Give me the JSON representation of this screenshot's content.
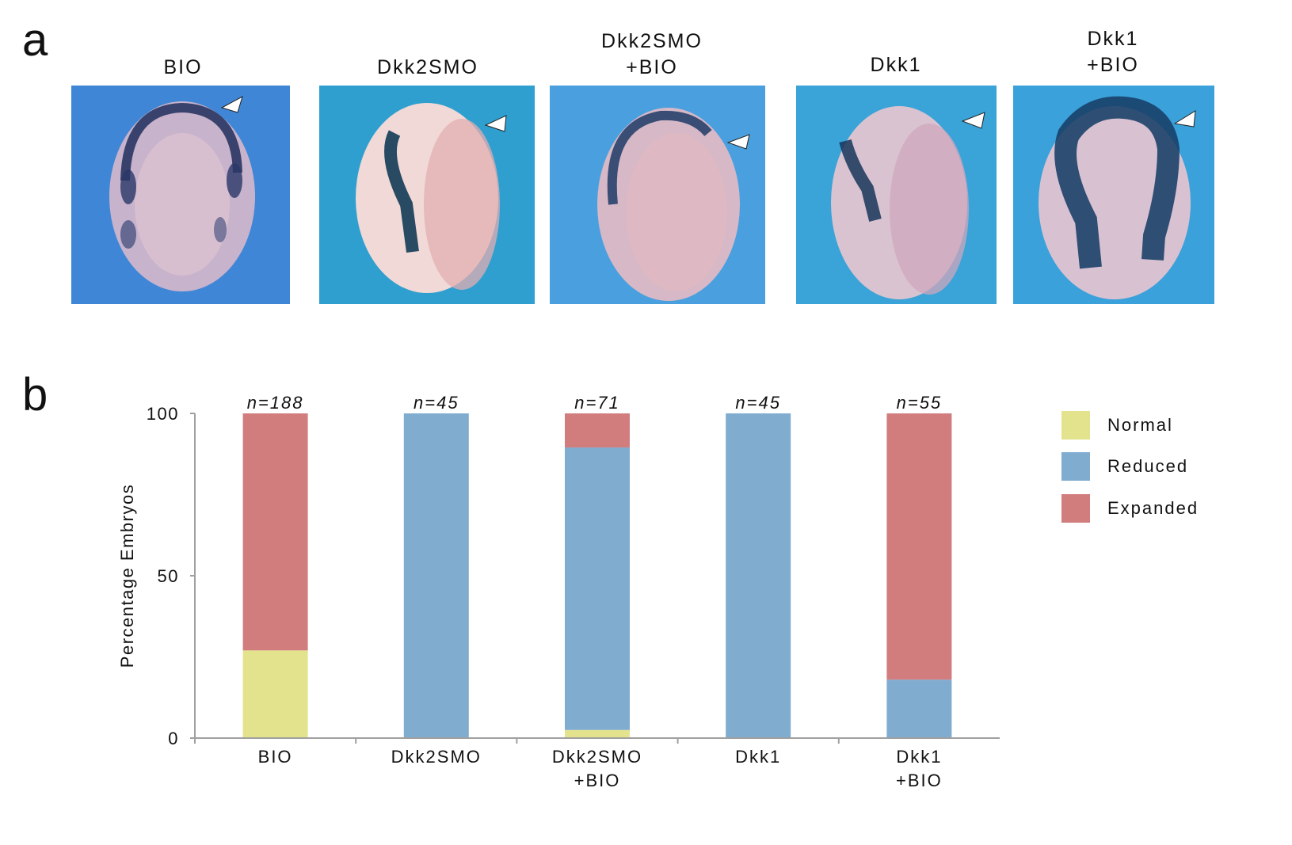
{
  "panel_a": {
    "letter": "a",
    "images": [
      {
        "label": "BIO",
        "description": "embryo with expanded dark blue stain arc",
        "stain": "expanded-arc",
        "arrowhead": true
      },
      {
        "label": "Dkk2SMO",
        "description": "embryo with reduced stain on one side",
        "stain": "reduced-side",
        "arrowhead": true
      },
      {
        "label": "Dkk2SMO\n+BIO",
        "description": "embryo with partial arc stain",
        "stain": "partial-arc",
        "arrowhead": true
      },
      {
        "label": "Dkk1",
        "description": "embryo with reduced stain on one side",
        "stain": "reduced-small",
        "arrowhead": true
      },
      {
        "label": "Dkk1\n+BIO",
        "description": "embryo with strongly expanded horseshoe stain",
        "stain": "horseshoe",
        "arrowhead": true
      }
    ]
  },
  "panel_b": {
    "letter": "b"
  },
  "chart_data": {
    "type": "bar",
    "stacked": true,
    "title": "",
    "xlabel": "",
    "ylabel": "Percentage Embryos",
    "ylim": [
      0,
      100
    ],
    "yticks": [
      0,
      50,
      100
    ],
    "grid": false,
    "categories": [
      "BIO",
      "Dkk2SMO",
      "Dkk2SMO\n+BIO",
      "Dkk1",
      "Dkk1\n+BIO"
    ],
    "annotations": [
      "n=188",
      "n=45",
      "n=71",
      "n=45",
      "n=55"
    ],
    "series": [
      {
        "name": "Normal",
        "color": "#e3e38d",
        "values": [
          27,
          0,
          2.5,
          0,
          0
        ]
      },
      {
        "name": "Reduced",
        "color": "#80acd0",
        "values": [
          0,
          100,
          87,
          100,
          18
        ]
      },
      {
        "name": "Expanded",
        "color": "#d17d7e",
        "values": [
          73,
          0,
          10.5,
          0,
          82
        ]
      }
    ],
    "legend": {
      "position": "right",
      "entries": [
        "Normal",
        "Reduced",
        "Expanded"
      ]
    }
  }
}
